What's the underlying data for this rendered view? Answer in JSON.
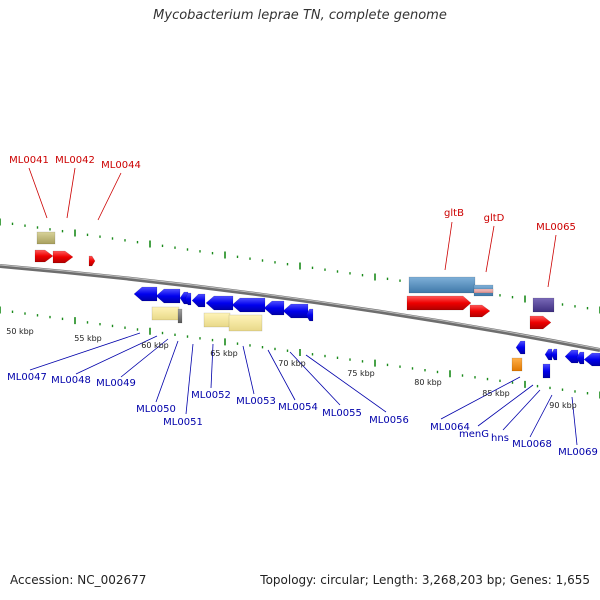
{
  "title": "Mycobacterium leprae TN, complete genome",
  "footer": {
    "accession_label": "Accession:",
    "accession": "NC_002677",
    "topology_label": "Topology:",
    "topology": "circular",
    "length_label": "Length:",
    "length": "3,268,203 bp",
    "genes_label": "Genes:",
    "genes": "1,655"
  },
  "colors": {
    "upper_label": "#cc0000",
    "lower_label": "#0000aa",
    "tick": "#1a8a1a",
    "backbone": "#7a7a7a"
  },
  "upper_labels": [
    "ML0041",
    "ML0042",
    "ML0044",
    "gltB",
    "gltD",
    "ML0065"
  ],
  "lower_labels": [
    "ML0047",
    "ML0048",
    "ML0049",
    "ML0050",
    "ML0051",
    "ML0052",
    "ML0053",
    "ML0054",
    "ML0055",
    "ML0056",
    "ML0064",
    "menG",
    "hns",
    "ML0068",
    "ML0069"
  ],
  "scale_labels": [
    "50 kbp",
    "55 kbp",
    "60 kbp",
    "65 kbp",
    "70 kbp",
    "75 kbp",
    "80 kbp",
    "85 kbp",
    "90 kbp"
  ]
}
